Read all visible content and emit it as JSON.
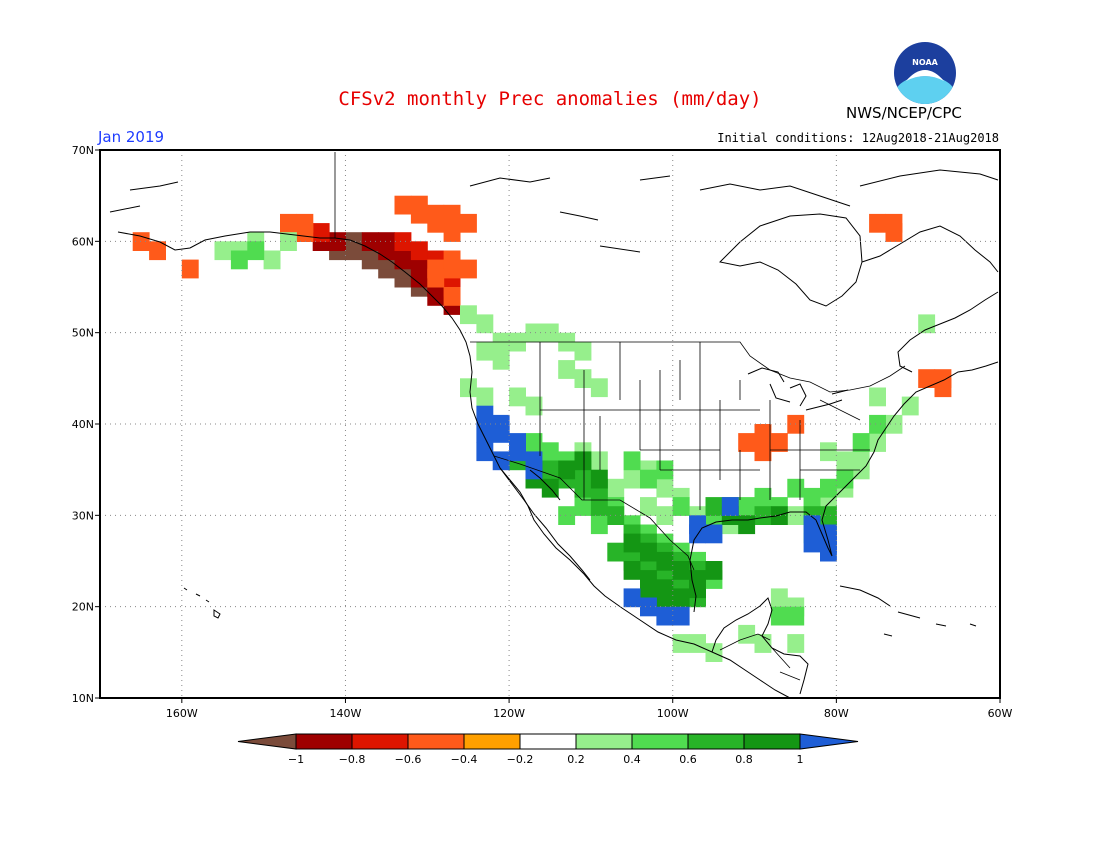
{
  "header": {
    "title": "CFSv2 monthly Prec anomalies (mm/day)",
    "agency": "NWS/NCEP/CPC",
    "month": "Jan 2019",
    "initial_conditions": "Initial conditions: 12Aug2018-21Aug2018",
    "logo_text": "NOAA"
  },
  "map": {
    "projection": "equirectangular",
    "lon_range": [
      -170,
      -60
    ],
    "lat_range": [
      10,
      70
    ],
    "grid": "dotted",
    "lat_ticks": [
      {
        "value": 70,
        "label": "70N"
      },
      {
        "value": 60,
        "label": "60N"
      },
      {
        "value": 50,
        "label": "50N"
      },
      {
        "value": 40,
        "label": "40N"
      },
      {
        "value": 30,
        "label": "30N"
      },
      {
        "value": 20,
        "label": "20N"
      },
      {
        "value": 10,
        "label": "10N"
      }
    ],
    "lon_ticks": [
      {
        "value": -160,
        "label": "160W"
      },
      {
        "value": -140,
        "label": "140W"
      },
      {
        "value": -120,
        "label": "120W"
      },
      {
        "value": -100,
        "label": "100W"
      },
      {
        "value": -80,
        "label": "80W"
      },
      {
        "value": -60,
        "label": "60W"
      }
    ],
    "anomaly_regions": [
      {
        "name": "dry-alaska-panhandle",
        "level": -1.0,
        "cells": [
          [
            -141,
            59
          ],
          [
            -139,
            59
          ],
          [
            -137,
            58
          ],
          [
            -135,
            57
          ],
          [
            -133,
            56
          ],
          [
            -131,
            55
          ],
          [
            -133,
            57
          ],
          [
            -135,
            58
          ],
          [
            -137,
            59
          ],
          [
            -139,
            60
          ]
        ]
      },
      {
        "name": "dry-bc-coast",
        "level": -0.8,
        "cells": [
          [
            -143,
            60
          ],
          [
            -141,
            60
          ],
          [
            -137,
            60
          ],
          [
            -135,
            59
          ],
          [
            -133,
            58
          ],
          [
            -131,
            57
          ],
          [
            -131,
            56
          ],
          [
            -129,
            55
          ],
          [
            -129,
            56
          ],
          [
            -133,
            59
          ],
          [
            -135,
            60
          ],
          [
            -131,
            58
          ],
          [
            -129,
            54
          ],
          [
            -127,
            53
          ]
        ]
      },
      {
        "name": "dry-gulf-alaska",
        "level": -0.6,
        "cells": [
          [
            -145,
            61
          ],
          [
            -143,
            61
          ],
          [
            -133,
            60
          ],
          [
            -131,
            59
          ],
          [
            -129,
            58
          ],
          [
            -127,
            56
          ],
          [
            -127,
            55
          ]
        ]
      },
      {
        "name": "dry-yukon",
        "level": -0.4,
        "cells": [
          [
            -147,
            62
          ],
          [
            -145,
            62
          ],
          [
            -145,
            61
          ],
          [
            -133,
            64
          ],
          [
            -131,
            64
          ],
          [
            -129,
            63
          ],
          [
            -127,
            63
          ],
          [
            -125,
            62
          ],
          [
            -129,
            62
          ],
          [
            -127,
            61
          ],
          [
            -131,
            63
          ],
          [
            -129,
            57
          ],
          [
            -127,
            57
          ],
          [
            -127,
            58
          ],
          [
            -125,
            57
          ],
          [
            -129,
            56
          ],
          [
            -127,
            54
          ],
          [
            -165,
            60
          ],
          [
            -163,
            59
          ],
          [
            -159,
            57
          ],
          [
            -75,
            62
          ],
          [
            -73,
            62
          ],
          [
            -73,
            61
          ],
          [
            -69,
            45
          ],
          [
            -67,
            44
          ],
          [
            -67,
            45
          ],
          [
            -91,
            38
          ],
          [
            -89,
            37
          ],
          [
            -87,
            38
          ],
          [
            -89,
            39
          ],
          [
            -85,
            40
          ]
        ]
      },
      {
        "name": "wet-northwest",
        "level": 0.2,
        "cells": [
          [
            -125,
            52
          ],
          [
            -123,
            51
          ],
          [
            -121,
            49
          ],
          [
            -119,
            49
          ],
          [
            -117,
            50
          ],
          [
            -115,
            50
          ],
          [
            -113,
            49
          ],
          [
            -111,
            48
          ],
          [
            -123,
            48
          ],
          [
            -121,
            47
          ],
          [
            -119,
            43
          ],
          [
            -117,
            42
          ],
          [
            -155,
            59
          ],
          [
            -153,
            59
          ],
          [
            -151,
            60
          ],
          [
            -147,
            60
          ],
          [
            -149,
            58
          ],
          [
            -125,
            44
          ],
          [
            -123,
            43
          ],
          [
            -113,
            46
          ],
          [
            -111,
            45
          ],
          [
            -109,
            44
          ],
          [
            -111,
            37
          ],
          [
            -109,
            36
          ],
          [
            -107,
            33
          ],
          [
            -105,
            34
          ],
          [
            -103,
            35
          ],
          [
            -101,
            33
          ],
          [
            -99,
            32
          ],
          [
            -103,
            31
          ],
          [
            -101,
            30
          ],
          [
            -97,
            30
          ],
          [
            -93,
            29
          ],
          [
            -91,
            30
          ],
          [
            -89,
            31
          ],
          [
            -85,
            30
          ],
          [
            -83,
            31
          ],
          [
            -81,
            32
          ],
          [
            -79,
            33
          ],
          [
            -77,
            35
          ],
          [
            -75,
            38
          ],
          [
            -73,
            40
          ],
          [
            -71,
            42
          ],
          [
            -79,
            36
          ],
          [
            -81,
            37
          ],
          [
            -77,
            36
          ],
          [
            -69,
            51
          ],
          [
            -87,
            21
          ],
          [
            -85,
            20
          ],
          [
            -97,
            16
          ],
          [
            -95,
            15
          ],
          [
            -99,
            16
          ],
          [
            -85,
            16
          ],
          [
            -89,
            16
          ],
          [
            -91,
            17
          ],
          [
            -75,
            43
          ]
        ]
      },
      {
        "name": "wet-mexico-plateau",
        "level": 0.4,
        "cells": [
          [
            -117,
            38
          ],
          [
            -115,
            37
          ],
          [
            -113,
            36
          ],
          [
            -111,
            35
          ],
          [
            -109,
            32
          ],
          [
            -107,
            31
          ],
          [
            -105,
            29
          ],
          [
            -103,
            28
          ],
          [
            -101,
            27
          ],
          [
            -99,
            26
          ],
          [
            -97,
            25
          ],
          [
            -95,
            23
          ],
          [
            -111,
            31
          ],
          [
            -109,
            29
          ],
          [
            -113,
            30
          ],
          [
            -105,
            36
          ],
          [
            -103,
            34
          ],
          [
            -101,
            35
          ],
          [
            -99,
            31
          ],
          [
            -95,
            30
          ],
          [
            -91,
            31
          ],
          [
            -87,
            31
          ],
          [
            -89,
            32
          ],
          [
            -85,
            33
          ],
          [
            -83,
            32
          ],
          [
            -81,
            33
          ],
          [
            -79,
            34
          ],
          [
            -83,
            28
          ],
          [
            -81,
            29
          ],
          [
            -77,
            38
          ],
          [
            -75,
            40
          ],
          [
            -87,
            19
          ],
          [
            -85,
            19
          ],
          [
            -153,
            58
          ],
          [
            -151,
            59
          ]
        ]
      },
      {
        "name": "wet-mexico",
        "level": 0.6,
        "cells": [
          [
            -115,
            35
          ],
          [
            -113,
            34
          ],
          [
            -111,
            33
          ],
          [
            -109,
            31
          ],
          [
            -107,
            30
          ],
          [
            -105,
            28
          ],
          [
            -103,
            27
          ],
          [
            -101,
            26
          ],
          [
            -99,
            25
          ],
          [
            -97,
            24
          ],
          [
            -107,
            26
          ],
          [
            -105,
            25
          ],
          [
            -103,
            24
          ],
          [
            -101,
            23
          ],
          [
            -99,
            22
          ],
          [
            -97,
            21
          ],
          [
            -95,
            31
          ],
          [
            -93,
            31
          ],
          [
            -89,
            30
          ],
          [
            -83,
            30
          ],
          [
            -81,
            30
          ],
          [
            -109,
            33
          ],
          [
            -111,
            34
          ],
          [
            -119,
            36
          ],
          [
            -117,
            35
          ]
        ]
      },
      {
        "name": "wet-sierra-madre",
        "level": 0.8,
        "cells": [
          [
            -105,
            27
          ],
          [
            -103,
            26
          ],
          [
            -101,
            25
          ],
          [
            -99,
            24
          ],
          [
            -97,
            23
          ],
          [
            -105,
            24
          ],
          [
            -103,
            23
          ],
          [
            -101,
            22
          ],
          [
            -103,
            21
          ],
          [
            -101,
            20
          ],
          [
            -99,
            21
          ],
          [
            -97,
            22
          ],
          [
            -95,
            24
          ],
          [
            -113,
            35
          ],
          [
            -111,
            36
          ],
          [
            -109,
            34
          ],
          [
            -117,
            34
          ],
          [
            -115,
            33
          ],
          [
            -93,
            30
          ],
          [
            -91,
            29
          ],
          [
            -87,
            30
          ]
        ]
      },
      {
        "name": "wet-california-florida",
        "level": 1.0,
        "cells": [
          [
            -123,
            41
          ],
          [
            -121,
            40
          ],
          [
            -121,
            39
          ],
          [
            -119,
            38
          ],
          [
            -119,
            37
          ],
          [
            -117,
            36
          ],
          [
            -123,
            39
          ],
          [
            -123,
            37
          ],
          [
            -121,
            36
          ],
          [
            -117,
            35
          ],
          [
            -83,
            29
          ],
          [
            -81,
            28
          ],
          [
            -81,
            27
          ],
          [
            -81,
            26
          ],
          [
            -83,
            27
          ],
          [
            -105,
            21
          ],
          [
            -103,
            20
          ],
          [
            -101,
            19
          ],
          [
            -99,
            19
          ],
          [
            -97,
            29
          ],
          [
            -95,
            28
          ],
          [
            -97,
            28
          ],
          [
            -93,
            31
          ]
        ]
      }
    ]
  },
  "colorbar": {
    "labels": [
      "-1",
      "-0.8",
      "-0.6",
      "-0.4",
      "-0.2",
      "0.2",
      "0.4",
      "0.6",
      "0.8",
      "1"
    ],
    "colors": {
      "lt_-1": "#7b4b3a",
      "-1_-0.8": "#9e0000",
      "-0.8_-0.6": "#dd1500",
      "-0.6_-0.4": "#ff5a1a",
      "-0.4_-0.2": "#ffa000",
      "-0.2_0.2": "#ffffff",
      "0.2_0.4": "#96ef8c",
      "0.4_0.6": "#50dc50",
      "0.6_0.8": "#28b428",
      "0.8_1": "#149614",
      "gt_1": "#1e5ed6"
    }
  }
}
